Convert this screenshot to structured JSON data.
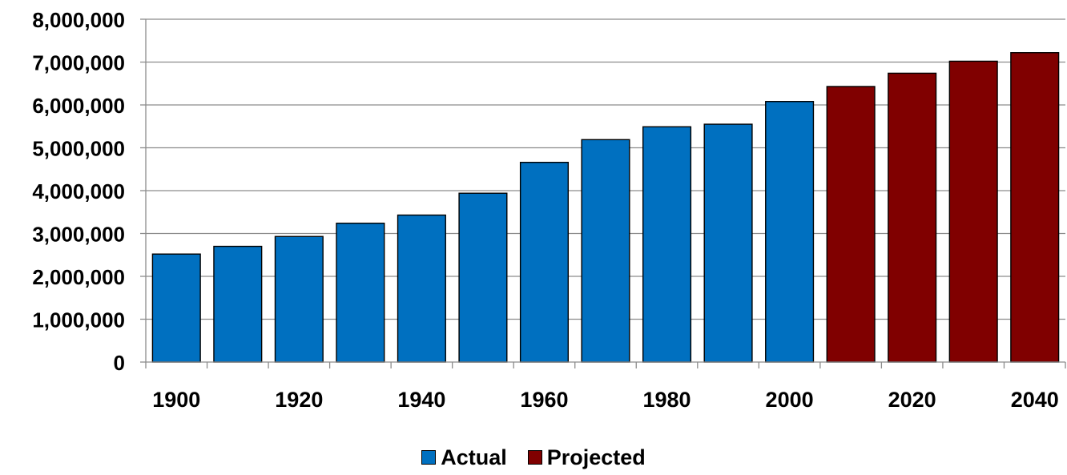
{
  "chart_data": {
    "type": "bar",
    "title": "",
    "xlabel": "",
    "ylabel": "",
    "ylim": [
      0,
      8000000
    ],
    "y_ticks": [
      "0",
      "1,000,000",
      "2,000,000",
      "3,000,000",
      "4,000,000",
      "5,000,000",
      "6,000,000",
      "7,000,000",
      "8,000,000"
    ],
    "y_tick_values": [
      0,
      1000000,
      2000000,
      3000000,
      4000000,
      5000000,
      6000000,
      7000000,
      8000000
    ],
    "x_tick_labels": [
      "1900",
      "1920",
      "1940",
      "1960",
      "1980",
      "2000",
      "2020",
      "2040"
    ],
    "categories": [
      "1900",
      "1910",
      "1920",
      "1930",
      "1940",
      "1950",
      "1960",
      "1970",
      "1980",
      "1990",
      "2000",
      "2010",
      "2020",
      "2030",
      "2040"
    ],
    "series": [
      {
        "name": "Actual",
        "color": "#0070C0",
        "values": [
          2520000,
          2700000,
          2930000,
          3240000,
          3430000,
          3940000,
          4660000,
          5190000,
          5490000,
          5550000,
          6080000,
          null,
          null,
          null,
          null
        ]
      },
      {
        "name": "Projected",
        "color": "#800000",
        "values": [
          null,
          null,
          null,
          null,
          null,
          null,
          null,
          null,
          null,
          null,
          null,
          6430000,
          6740000,
          7020000,
          7220000
        ]
      }
    ],
    "grid": true,
    "legend_position": "bottom"
  }
}
